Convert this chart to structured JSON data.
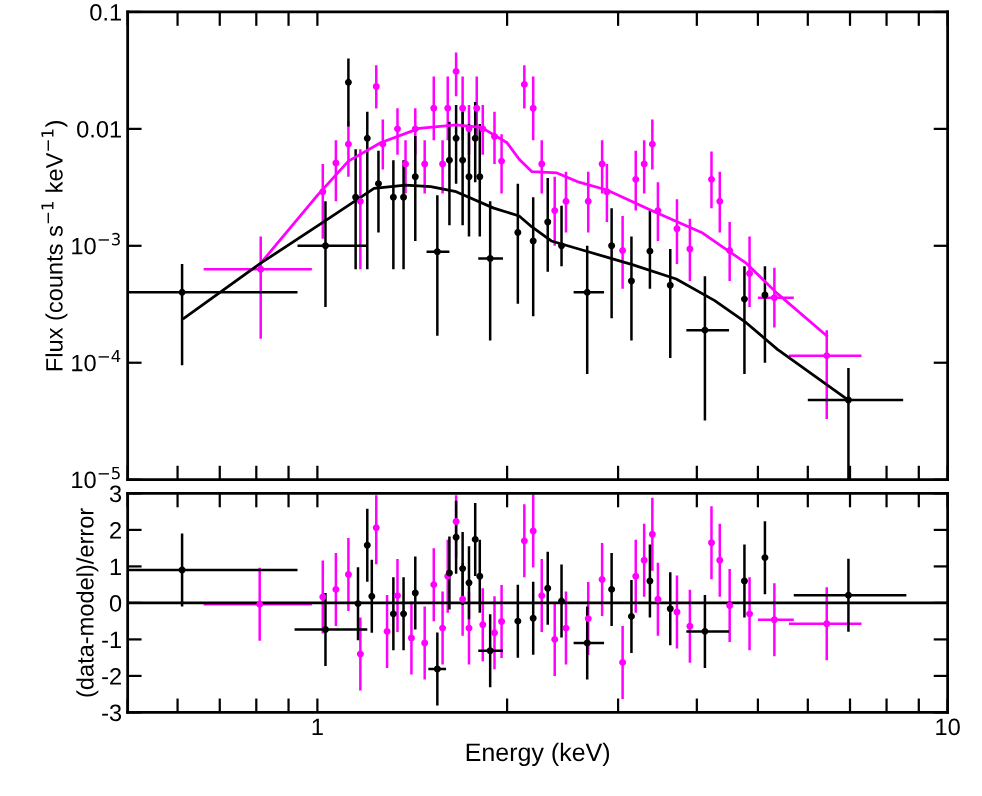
{
  "chart_data": [
    {
      "type": "scatter",
      "ylabel": "Flux (counts s$^{−1}$ keV$^{−1}$)",
      "log": "xy",
      "xlim": [
        0.5,
        10
      ],
      "ylim": [
        1e-05,
        0.1
      ],
      "xticks": [
        {
          "value": 0.5,
          "label": null
        },
        {
          "value": 0.6,
          "label": null
        },
        {
          "value": 0.7,
          "label": null
        },
        {
          "value": 0.8,
          "label": null
        },
        {
          "value": 0.9,
          "label": null
        },
        1,
        2,
        3,
        4,
        5,
        6,
        7,
        8,
        9,
        10
      ],
      "yticks": [
        {
          "value": 1e-05,
          "label": "10$^{−5}$"
        },
        {
          "value": 0.0001,
          "label": "10$^{−4}$"
        },
        {
          "value": 0.001,
          "label": "10$^{−3}$"
        },
        0.01,
        0.1
      ],
      "tick_labels": "y",
      "grid": false,
      "legend": false,
      "marker": "circle",
      "series": [
        {
          "color": "#ff00ff",
          "x": [
            0.813,
            1.02,
            1.07,
            1.12,
            1.17,
            1.24,
            1.27,
            1.34,
            1.38,
            1.43,
            1.48,
            1.53,
            1.58,
            1.61,
            1.66,
            1.7,
            1.74,
            1.79,
            1.83,
            1.91,
            1.96,
            2.13,
            2.2,
            2.27,
            2.38,
            2.48,
            2.69,
            2.83,
            2.88,
            3.05,
            3.2,
            3.3,
            3.4,
            3.47,
            3.72,
            3.9,
            4.22,
            4.35,
            4.51,
            4.85,
            5.31,
            6.43
          ],
          "values": [
            0.00063,
            0.0029,
            0.0051,
            0.0074,
            0.0024,
            0.023,
            0.0074,
            0.01,
            0.005,
            0.01,
            0.005,
            0.015,
            0.005,
            0.015,
            0.031,
            0.015,
            0.01,
            0.015,
            0.01,
            0.0086,
            0.0053,
            0.024,
            0.015,
            0.005,
            0.002,
            0.0024,
            0.0024,
            0.005,
            0.0029,
            0.00091,
            0.0037,
            0.005,
            0.0074,
            0.002,
            0.0014,
            0.00094,
            0.0037,
            0.0024,
            0.00091,
            0.00058,
            0.00036,
            0.000115
          ],
          "errors": [
            [
              0.00016,
              0.0012
            ],
            [
              0.00115,
              0.005
            ],
            [
              0.0024,
              0.008
            ],
            [
              0.0039,
              0.0116
            ],
            [
              0.00063,
              0.0067
            ],
            [
              0.0149,
              0.035
            ],
            [
              0.0045,
              0.012
            ],
            [
              0.006,
              0.015
            ],
            [
              0.0028,
              0.008
            ],
            [
              0.006,
              0.015
            ],
            [
              0.0028,
              0.008
            ],
            [
              0.008,
              0.028
            ],
            [
              0.0028,
              0.008
            ],
            [
              0.008,
              0.028
            ],
            [
              0.019,
              0.045
            ],
            [
              0.008,
              0.028
            ],
            [
              0.006,
              0.016
            ],
            [
              0.008,
              0.028
            ],
            [
              0.006,
              0.016
            ],
            [
              0.005,
              0.014
            ],
            [
              0.0028,
              0.009
            ],
            [
              0.0149,
              0.035
            ],
            [
              0.008,
              0.028
            ],
            [
              0.0028,
              0.008
            ],
            [
              0.001,
              0.0039
            ],
            [
              0.0013,
              0.0043
            ],
            [
              0.0013,
              0.0043
            ],
            [
              0.0028,
              0.008
            ],
            [
              0.0016,
              0.005
            ],
            [
              0.00043,
              0.0018
            ],
            [
              0.002,
              0.0065
            ],
            [
              0.0028,
              0.008
            ],
            [
              0.0045,
              0.012
            ],
            [
              0.0011,
              0.0035
            ],
            [
              0.0007,
              0.0025
            ],
            [
              0.0005,
              0.0017
            ],
            [
              0.0021,
              0.0064
            ],
            [
              0.0013,
              0.0043
            ],
            [
              0.0005,
              0.0016
            ],
            [
              0.0003,
              0.0012
            ],
            [
              0.0002,
              0.00065
            ],
            [
              3.3e-05,
              0.00019
            ]
          ],
          "xerrors": [
            [
              0.66,
              0.98
            ],
            null,
            null,
            null,
            null,
            null,
            null,
            null,
            null,
            null,
            null,
            null,
            null,
            null,
            null,
            null,
            null,
            null,
            null,
            null,
            null,
            null,
            null,
            null,
            null,
            null,
            null,
            null,
            null,
            null,
            null,
            null,
            null,
            null,
            null,
            null,
            null,
            null,
            null,
            null,
            [
              5.0,
              5.7
            ],
            [
              5.6,
              7.3
            ]
          ]
        },
        {
          "color": "#000000",
          "x": [
            0.61,
            1.03,
            1.12,
            1.15,
            1.2,
            1.25,
            1.32,
            1.37,
            1.43,
            1.55,
            1.62,
            1.66,
            1.7,
            1.74,
            1.78,
            1.81,
            1.88,
            2.08,
            2.2,
            2.32,
            2.44,
            2.68,
            2.93,
            3.15,
            3.37,
            3.63,
            4.12,
            4.76,
            5.13,
            6.96
          ],
          "values": [
            0.0004,
            0.001,
            0.025,
            0.0026,
            0.0083,
            0.0034,
            0.0026,
            0.0026,
            0.0039,
            0.00089,
            0.0054,
            0.0083,
            0.0054,
            0.0039,
            0.0083,
            0.0039,
            0.00078,
            0.0013,
            0.0011,
            0.0016,
            0.001,
            0.0004,
            0.001,
            0.0005,
            0.0009,
            0.00046,
            0.00019,
            0.00035,
            0.00038,
            4.8e-05
          ],
          "errors": [
            [
              9.5e-05,
              0.0007
            ],
            [
              0.0003,
              0.0024
            ],
            [
              0.0105,
              0.04
            ],
            [
              0.00063,
              0.0067
            ],
            [
              0.00063,
              0.014
            ],
            [
              0.0013,
              0.0065
            ],
            [
              0.00063,
              0.0054
            ],
            [
              0.00063,
              0.0054
            ],
            [
              0.0011,
              0.0087
            ],
            [
              0.00017,
              0.0027
            ],
            [
              0.0015,
              0.0115
            ],
            [
              0.0034,
              0.016
            ],
            [
              0.0015,
              0.014
            ],
            [
              0.0012,
              0.011
            ],
            [
              0.0035,
              0.017
            ],
            [
              0.0012,
              0.011
            ],
            [
              0.000155,
              0.0024
            ],
            [
              0.00032,
              0.0034
            ],
            [
              0.00025,
              0.0026
            ],
            [
              0.0006,
              0.0038
            ],
            [
              0.00067,
              0.0022
            ],
            [
              8e-05,
              0.001
            ],
            [
              0.00024,
              0.0021
            ],
            [
              0.000155,
              0.0012
            ],
            [
              0.00043,
              0.002
            ],
            [
              0.00011,
              0.00094
            ],
            [
              3.2e-05,
              0.00055
            ],
            [
              8e-05,
              0.00067
            ],
            [
              0.0001,
              0.00067
            ],
            [
              1e-05,
              9e-05
            ]
          ],
          "xerrors": [
            [
              0.5,
              0.93
            ],
            [
              0.93,
              1.2
            ],
            null,
            null,
            null,
            null,
            null,
            null,
            null,
            [
              1.49,
              1.62
            ],
            null,
            null,
            null,
            null,
            null,
            null,
            [
              1.8,
              1.97
            ],
            null,
            null,
            null,
            null,
            [
              2.55,
              2.85
            ],
            null,
            null,
            null,
            null,
            [
              3.85,
              4.5
            ],
            null,
            null,
            [
              6.0,
              8.5
            ]
          ]
        },
        {
          "type": "line",
          "marker": "none",
          "color": "#ff00ff",
          "x": [
            0.813,
            1.0,
            1.12,
            1.26,
            1.45,
            1.66,
            1.82,
            2.0,
            2.09,
            2.19,
            2.4,
            2.6,
            2.88,
            3.39,
            4.07,
            4.79,
            5.37,
            6.43
          ],
          "values": [
            0.00071,
            0.0027,
            0.0053,
            0.0076,
            0.0101,
            0.0108,
            0.0103,
            0.0076,
            0.0055,
            0.0043,
            0.0042,
            0.0035,
            0.003,
            0.002,
            0.0013,
            0.00071,
            0.00039,
            0.00017
          ]
        },
        {
          "type": "line",
          "marker": "none",
          "color": "#000000",
          "x": [
            0.614,
            0.813,
            1.023,
            1.23,
            1.38,
            1.513,
            1.66,
            1.905,
            2.09,
            2.19,
            2.35,
            2.69,
            3.16,
            3.71,
            4.27,
            4.79,
            5.37,
            6.92
          ],
          "values": [
            0.00024,
            0.00071,
            0.0016,
            0.0031,
            0.0033,
            0.0032,
            0.0029,
            0.0021,
            0.0018,
            0.00145,
            0.0011,
            0.00089,
            0.00069,
            0.00052,
            0.00034,
            0.00022,
            0.00013,
            4.9e-05
          ]
        }
      ]
    },
    {
      "type": "scatter",
      "xlabel": "Energy (keV)",
      "ylabel": "(data-model)/error",
      "log": "x",
      "xlim": [
        0.5,
        10
      ],
      "ylim": [
        -3,
        3
      ],
      "xticks": [
        {
          "value": 0.5,
          "label": null
        },
        {
          "value": 0.6,
          "label": null
        },
        {
          "value": 0.7,
          "label": null
        },
        {
          "value": 0.8,
          "label": null
        },
        {
          "value": 0.9,
          "label": null
        },
        1,
        {
          "value": 2,
          "label": null
        },
        {
          "value": 3,
          "label": null
        },
        {
          "value": 4,
          "label": null
        },
        {
          "value": 5,
          "label": null
        },
        {
          "value": 6,
          "label": null
        },
        {
          "value": 7,
          "label": null
        },
        {
          "value": 8,
          "label": null
        },
        {
          "value": 9,
          "label": null
        },
        10
      ],
      "yticks": [
        -3,
        -2,
        -1,
        0,
        1,
        2,
        3
      ],
      "grid": false,
      "legend": false,
      "marker": "circle",
      "ref_lines": [
        {
          "axis": "y",
          "value": 0,
          "color": "#000000"
        }
      ],
      "series": [
        {
          "color": "#ff00ff",
          "x": [
            0.81,
            1.02,
            1.07,
            1.12,
            1.17,
            1.24,
            1.29,
            1.34,
            1.41,
            1.48,
            1.53,
            1.58,
            1.61,
            1.66,
            1.7,
            1.74,
            1.83,
            1.91,
            1.96,
            2.13,
            2.2,
            2.27,
            2.38,
            2.48,
            2.69,
            2.83,
            3.05,
            3.2,
            3.3,
            3.4,
            3.47,
            3.72,
            3.9,
            4.22,
            4.35,
            4.51,
            4.85,
            5.31,
            6.43
          ],
          "values": [
            -0.04,
            0.16,
            0.37,
            0.78,
            -1.4,
            2.06,
            -0.78,
            0.2,
            -0.96,
            -1.1,
            0.5,
            -0.69,
            0.73,
            2.23,
            0.1,
            -0.69,
            -0.6,
            -0.82,
            -0.51,
            1.7,
            1.97,
            0.2,
            -1.0,
            -0.69,
            -0.43,
            0.64,
            -1.63,
            0.73,
            1.17,
            1.88,
            0.1,
            -0.25,
            -0.64,
            1.65,
            1.17,
            -0.07,
            -0.3,
            -0.46,
            -0.57
          ],
          "errors": [
            1,
            1,
            1,
            1,
            1,
            [
              1.06,
              2.95
            ],
            1,
            1,
            1,
            1,
            1,
            1,
            1,
            [
              1.23,
              2.95
            ],
            1,
            1,
            1,
            1,
            1,
            1,
            1,
            1,
            1,
            1,
            1,
            1,
            1,
            1,
            1,
            1,
            1,
            1,
            1,
            1,
            1,
            1,
            1,
            1,
            1
          ],
          "xerrors": [
            [
              0.66,
              0.98
            ],
            null,
            null,
            null,
            null,
            null,
            null,
            null,
            null,
            null,
            null,
            null,
            null,
            null,
            null,
            null,
            null,
            null,
            null,
            null,
            null,
            null,
            null,
            null,
            null,
            null,
            null,
            null,
            null,
            null,
            null,
            null,
            null,
            null,
            null,
            null,
            null,
            [
              5.0,
              5.7
            ],
            [
              5.6,
              7.3
            ]
          ]
        },
        {
          "color": "#000000",
          "x": [
            0.61,
            1.03,
            1.2,
            1.16,
            1.22,
            1.32,
            1.37,
            1.43,
            1.55,
            1.62,
            1.66,
            1.7,
            1.74,
            1.78,
            1.81,
            1.88,
            2.08,
            2.2,
            2.32,
            2.44,
            2.68,
            2.93,
            3.15,
            3.37,
            3.63,
            4.12,
            4.76,
            5.13,
            6.96
          ],
          "values": [
            0.9,
            -0.73,
            1.58,
            -0.02,
            0.18,
            -0.3,
            -0.3,
            0.27,
            -1.81,
            0.82,
            1.8,
            0.94,
            0.55,
            1.74,
            0.73,
            -1.31,
            -0.5,
            -0.42,
            0.4,
            0.05,
            -1.1,
            0.37,
            -0.37,
            0.6,
            -0.16,
            -0.78,
            0.6,
            1.24,
            0.21
          ],
          "errors": [
            1,
            1,
            1,
            1,
            1,
            1,
            1,
            1,
            1,
            1,
            1,
            1,
            1,
            1,
            1,
            1,
            1,
            1,
            1,
            1,
            1,
            1,
            1,
            1,
            1,
            1,
            1,
            1,
            1
          ],
          "xerrors": [
            [
              0.5,
              0.93
            ],
            [
              0.92,
              1.2
            ],
            null,
            null,
            null,
            null,
            null,
            null,
            [
              1.5,
              1.6
            ],
            null,
            null,
            null,
            null,
            null,
            null,
            [
              1.8,
              1.97
            ],
            null,
            null,
            null,
            null,
            [
              2.55,
              2.85
            ],
            null,
            null,
            null,
            null,
            [
              3.85,
              4.5
            ],
            null,
            null,
            [
              5.7,
              8.6
            ]
          ]
        }
      ]
    }
  ]
}
